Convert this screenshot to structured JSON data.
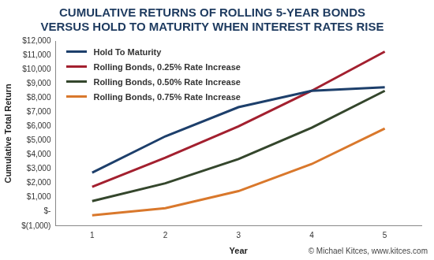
{
  "chart_data": {
    "type": "line",
    "title": [
      "CUMULATIVE RETURNS OF ROLLING 5-YEAR BONDS",
      "VERSUS HOLD TO MATURITY WHEN INTEREST RATES RISE"
    ],
    "x_label": "Year",
    "y_label": "Cumulative Total Return",
    "annotation": "© Michael Kitces, www.kitces.com",
    "categories": [
      "1",
      "2",
      "3",
      "4",
      "5"
    ],
    "series": [
      {
        "name": "Hold To Maturity",
        "color": "#1d3f6b",
        "values": [
          2750,
          5300,
          7350,
          8500,
          8750
        ]
      },
      {
        "name": "Rolling Bonds, 0.25% Rate Increase",
        "color": "#a3202f",
        "values": [
          1750,
          3800,
          6000,
          8500,
          11250
        ]
      },
      {
        "name": "Rolling Bonds, 0.50% Rate Increase",
        "color": "#34462c",
        "values": [
          750,
          2000,
          3700,
          5900,
          8500
        ]
      },
      {
        "name": "Rolling Bonds, 0.75% Rate Increase",
        "color": "#d9782c",
        "values": [
          -250,
          250,
          1450,
          3350,
          5850
        ]
      }
    ],
    "ylim": [
      -1000,
      12000
    ],
    "yticks": [
      {
        "value": -1000,
        "label": "$(1,000)"
      },
      {
        "value": 0,
        "label": "$-"
      },
      {
        "value": 1000,
        "label": "$1,000"
      },
      {
        "value": 2000,
        "label": "$2,000"
      },
      {
        "value": 3000,
        "label": "$3,000"
      },
      {
        "value": 4000,
        "label": "$4,000"
      },
      {
        "value": 5000,
        "label": "$5,000"
      },
      {
        "value": 6000,
        "label": "$6,000"
      },
      {
        "value": 7000,
        "label": "$7,000"
      },
      {
        "value": 8000,
        "label": "$8,000"
      },
      {
        "value": 9000,
        "label": "$9,000"
      },
      {
        "value": 10000,
        "label": "$10,000"
      },
      {
        "value": 11000,
        "label": "$11,000"
      },
      {
        "value": 12000,
        "label": "$12,000"
      }
    ],
    "grid": false,
    "legend": "top-left"
  }
}
